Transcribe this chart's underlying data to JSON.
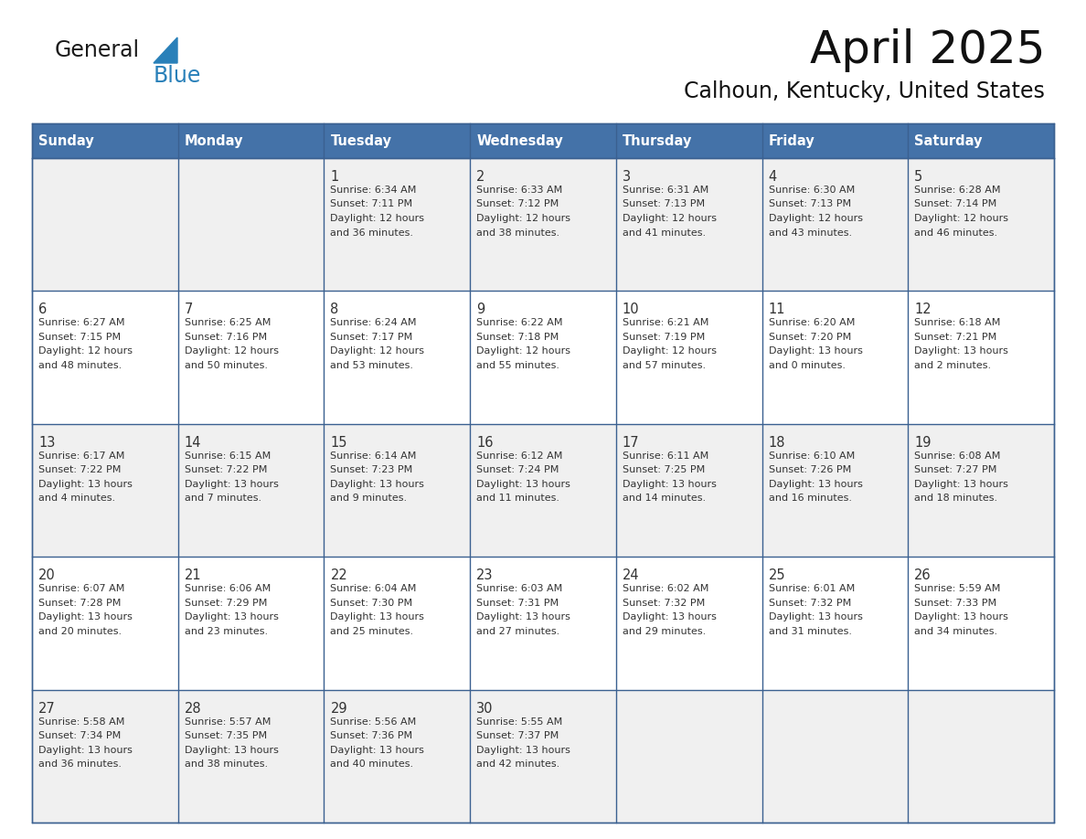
{
  "title": "April 2025",
  "subtitle": "Calhoun, Kentucky, United States",
  "header_color": "#4472a8",
  "header_text_color": "#ffffff",
  "row_bg_odd": "#f0f0f0",
  "row_bg_even": "#ffffff",
  "border_color": "#3a6090",
  "text_color": "#333333",
  "logo_general_color": "#1a1a1a",
  "logo_blue_color": "#2980b9",
  "logo_triangle_color": "#2980b9",
  "days_of_week": [
    "Sunday",
    "Monday",
    "Tuesday",
    "Wednesday",
    "Thursday",
    "Friday",
    "Saturday"
  ],
  "weeks": [
    [
      {
        "day": "",
        "info": ""
      },
      {
        "day": "",
        "info": ""
      },
      {
        "day": "1",
        "info": "Sunrise: 6:34 AM\nSunset: 7:11 PM\nDaylight: 12 hours\nand 36 minutes."
      },
      {
        "day": "2",
        "info": "Sunrise: 6:33 AM\nSunset: 7:12 PM\nDaylight: 12 hours\nand 38 minutes."
      },
      {
        "day": "3",
        "info": "Sunrise: 6:31 AM\nSunset: 7:13 PM\nDaylight: 12 hours\nand 41 minutes."
      },
      {
        "day": "4",
        "info": "Sunrise: 6:30 AM\nSunset: 7:13 PM\nDaylight: 12 hours\nand 43 minutes."
      },
      {
        "day": "5",
        "info": "Sunrise: 6:28 AM\nSunset: 7:14 PM\nDaylight: 12 hours\nand 46 minutes."
      }
    ],
    [
      {
        "day": "6",
        "info": "Sunrise: 6:27 AM\nSunset: 7:15 PM\nDaylight: 12 hours\nand 48 minutes."
      },
      {
        "day": "7",
        "info": "Sunrise: 6:25 AM\nSunset: 7:16 PM\nDaylight: 12 hours\nand 50 minutes."
      },
      {
        "day": "8",
        "info": "Sunrise: 6:24 AM\nSunset: 7:17 PM\nDaylight: 12 hours\nand 53 minutes."
      },
      {
        "day": "9",
        "info": "Sunrise: 6:22 AM\nSunset: 7:18 PM\nDaylight: 12 hours\nand 55 minutes."
      },
      {
        "day": "10",
        "info": "Sunrise: 6:21 AM\nSunset: 7:19 PM\nDaylight: 12 hours\nand 57 minutes."
      },
      {
        "day": "11",
        "info": "Sunrise: 6:20 AM\nSunset: 7:20 PM\nDaylight: 13 hours\nand 0 minutes."
      },
      {
        "day": "12",
        "info": "Sunrise: 6:18 AM\nSunset: 7:21 PM\nDaylight: 13 hours\nand 2 minutes."
      }
    ],
    [
      {
        "day": "13",
        "info": "Sunrise: 6:17 AM\nSunset: 7:22 PM\nDaylight: 13 hours\nand 4 minutes."
      },
      {
        "day": "14",
        "info": "Sunrise: 6:15 AM\nSunset: 7:22 PM\nDaylight: 13 hours\nand 7 minutes."
      },
      {
        "day": "15",
        "info": "Sunrise: 6:14 AM\nSunset: 7:23 PM\nDaylight: 13 hours\nand 9 minutes."
      },
      {
        "day": "16",
        "info": "Sunrise: 6:12 AM\nSunset: 7:24 PM\nDaylight: 13 hours\nand 11 minutes."
      },
      {
        "day": "17",
        "info": "Sunrise: 6:11 AM\nSunset: 7:25 PM\nDaylight: 13 hours\nand 14 minutes."
      },
      {
        "day": "18",
        "info": "Sunrise: 6:10 AM\nSunset: 7:26 PM\nDaylight: 13 hours\nand 16 minutes."
      },
      {
        "day": "19",
        "info": "Sunrise: 6:08 AM\nSunset: 7:27 PM\nDaylight: 13 hours\nand 18 minutes."
      }
    ],
    [
      {
        "day": "20",
        "info": "Sunrise: 6:07 AM\nSunset: 7:28 PM\nDaylight: 13 hours\nand 20 minutes."
      },
      {
        "day": "21",
        "info": "Sunrise: 6:06 AM\nSunset: 7:29 PM\nDaylight: 13 hours\nand 23 minutes."
      },
      {
        "day": "22",
        "info": "Sunrise: 6:04 AM\nSunset: 7:30 PM\nDaylight: 13 hours\nand 25 minutes."
      },
      {
        "day": "23",
        "info": "Sunrise: 6:03 AM\nSunset: 7:31 PM\nDaylight: 13 hours\nand 27 minutes."
      },
      {
        "day": "24",
        "info": "Sunrise: 6:02 AM\nSunset: 7:32 PM\nDaylight: 13 hours\nand 29 minutes."
      },
      {
        "day": "25",
        "info": "Sunrise: 6:01 AM\nSunset: 7:32 PM\nDaylight: 13 hours\nand 31 minutes."
      },
      {
        "day": "26",
        "info": "Sunrise: 5:59 AM\nSunset: 7:33 PM\nDaylight: 13 hours\nand 34 minutes."
      }
    ],
    [
      {
        "day": "27",
        "info": "Sunrise: 5:58 AM\nSunset: 7:34 PM\nDaylight: 13 hours\nand 36 minutes."
      },
      {
        "day": "28",
        "info": "Sunrise: 5:57 AM\nSunset: 7:35 PM\nDaylight: 13 hours\nand 38 minutes."
      },
      {
        "day": "29",
        "info": "Sunrise: 5:56 AM\nSunset: 7:36 PM\nDaylight: 13 hours\nand 40 minutes."
      },
      {
        "day": "30",
        "info": "Sunrise: 5:55 AM\nSunset: 7:37 PM\nDaylight: 13 hours\nand 42 minutes."
      },
      {
        "day": "",
        "info": ""
      },
      {
        "day": "",
        "info": ""
      },
      {
        "day": "",
        "info": ""
      }
    ]
  ],
  "figsize": [
    11.88,
    9.18
  ],
  "dpi": 100
}
